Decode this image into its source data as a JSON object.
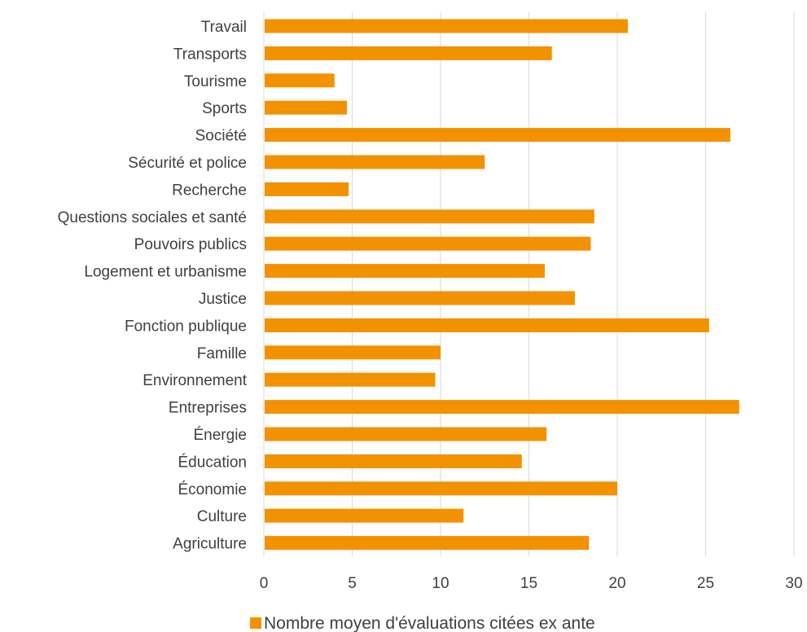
{
  "chart_data": {
    "type": "bar",
    "orientation": "horizontal",
    "categories": [
      "Travail",
      "Transports",
      "Tourisme",
      "Sports",
      "Société",
      "Sécurité et police",
      "Recherche",
      "Questions sociales et santé",
      "Pouvoirs publics",
      "Logement et urbanisme",
      "Justice",
      "Fonction publique",
      "Famille",
      "Environnement",
      "Entreprises",
      "Énergie",
      "Éducation",
      "Économie",
      "Culture",
      "Agriculture "
    ],
    "series": [
      {
        "name": "Nombre moyen d'évaluations citées ex ante",
        "values": [
          20.6,
          16.3,
          4.0,
          4.7,
          26.4,
          12.5,
          4.8,
          18.7,
          18.5,
          15.9,
          17.6,
          25.2,
          10.0,
          9.7,
          26.9,
          16.0,
          14.6,
          20.0,
          11.3,
          18.4
        ]
      }
    ],
    "xlim": [
      0,
      30
    ],
    "xticks": [
      0,
      5,
      10,
      15,
      20,
      25,
      30
    ],
    "grid": "vertical",
    "legend_position": "bottom",
    "colors": {
      "bar": "#F39200",
      "grid": "#D9D9D9",
      "text": "#404040"
    }
  }
}
